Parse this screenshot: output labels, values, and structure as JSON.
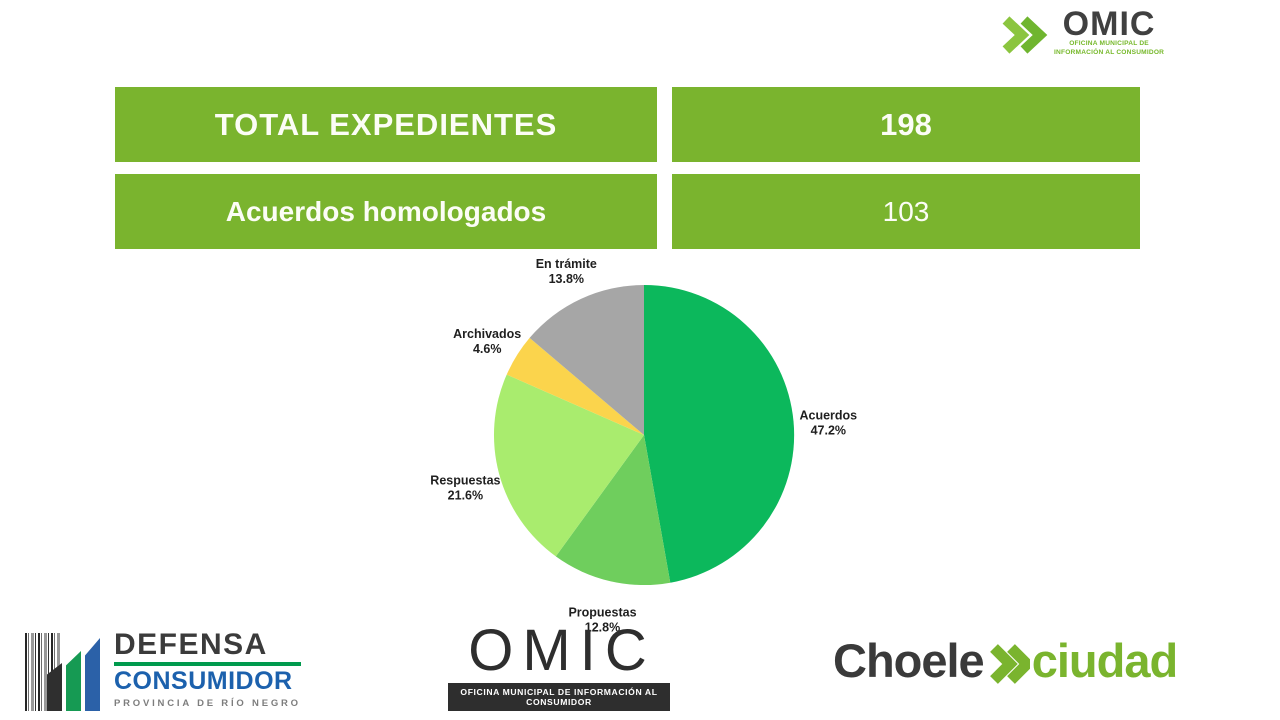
{
  "brand": {
    "green": "#7AB42E",
    "dark": "#3A3A3A"
  },
  "header_logo": {
    "name": "OMIC",
    "tagline_line1": "OFICINA MUNICIPAL DE",
    "tagline_line2": "INFORMACIÓN AL CONSUMIDOR"
  },
  "stats": {
    "banner_color": "#7AB42E",
    "rows": [
      {
        "label": "TOTAL EXPEDIENTES",
        "value": "198"
      },
      {
        "label": "Acuerdos homologados",
        "value": "103"
      }
    ]
  },
  "chart_data": {
    "type": "pie",
    "title": "",
    "legend": false,
    "labels_position": "outside",
    "start_angle_deg": 0,
    "direction": "clockwise",
    "slices": [
      {
        "label": "Acuerdos",
        "pct_label": "47.2%",
        "value": 47.2,
        "color": "#0CB85C"
      },
      {
        "label": "Propuestas",
        "pct_label": "12.8%",
        "value": 12.8,
        "color": "#6FCE5D"
      },
      {
        "label": "Respuestas",
        "pct_label": "21.6%",
        "value": 21.6,
        "color": "#A9EC6E"
      },
      {
        "label": "Archivados",
        "pct_label": "4.6%",
        "value": 4.6,
        "color": "#FBD44C"
      },
      {
        "label": "En trámite",
        "pct_label": "13.8%",
        "value": 13.8,
        "color": "#A6A6A6"
      }
    ]
  },
  "footer": {
    "defensa_logo": {
      "line1": "DEFENSA",
      "line2": "CONSUMIDOR",
      "line3": "PROVINCIA DE RÍO NEGRO"
    },
    "omic_logo": {
      "name": "OMIC",
      "tagline": "OFICINA MUNICIPAL DE INFORMACIÓN AL CONSUMIDOR"
    },
    "choele_logo": {
      "part1": "Choele",
      "part2": "ciudad",
      "accent": "#7AB42E"
    }
  }
}
